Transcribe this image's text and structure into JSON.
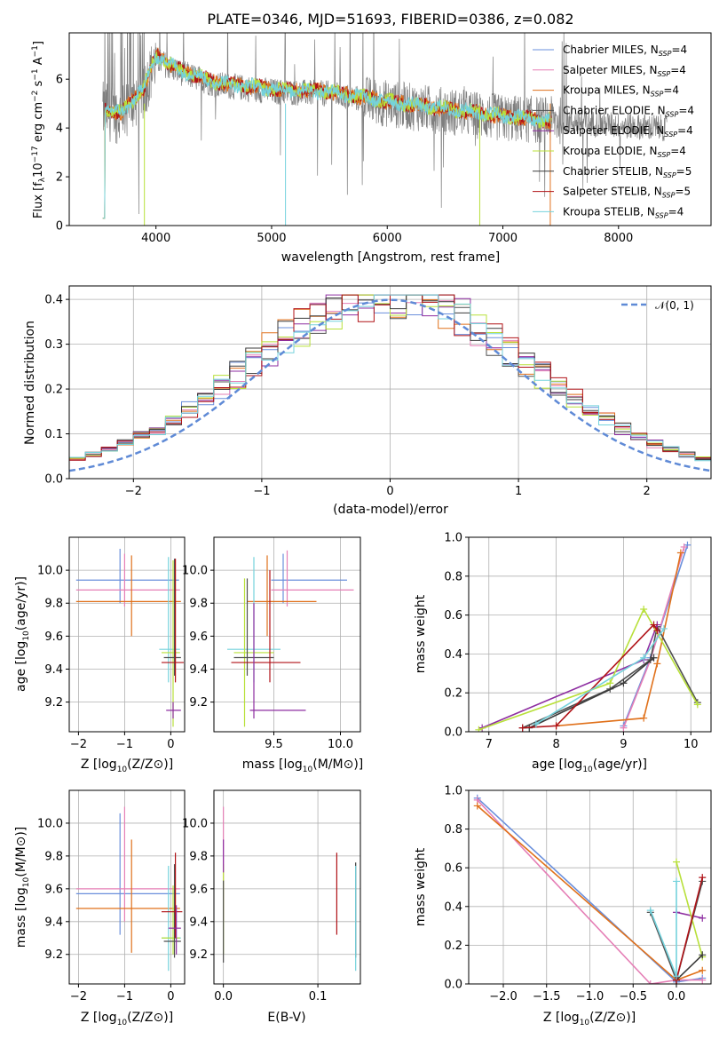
{
  "colors": {
    "chabrier_miles": "#6a8fdc",
    "salpeter_miles": "#e57fb6",
    "kroupa_miles": "#e0711b",
    "chabrier_elodie": "#4f4f4f",
    "salpeter_elodie": "#8e2ea1",
    "kroupa_elodie": "#b8e03a",
    "chabrier_stelib": "#3a3a3a",
    "salpeter_stelib": "#b01217",
    "kroupa_stelib": "#74d2dc",
    "data_grey": "#7f7f7f",
    "normal": "#5f8ad6",
    "grid": "#b0b0b0"
  },
  "chart_data": [
    {
      "type": "line",
      "title": "PLATE=0346, MJD=51693, FIBERID=0386, z=0.082",
      "xlabel": "wavelength [Angstrom, rest frame]",
      "ylabel": "Flux [fλ 10⁻¹⁷ erg cm⁻² s⁻¹ A⁻¹]",
      "xlim": [
        3250,
        8800
      ],
      "ylim": [
        0,
        7.9
      ],
      "xticks": [
        4000,
        5000,
        6000,
        7000,
        8000
      ],
      "yticks": [
        0,
        2,
        4,
        6
      ],
      "legend_position": "right",
      "legend": [
        {
          "pre": "Chabrier MILES, N",
          "sub": "SSP",
          "post": "=4",
          "color": "#6a8fdc"
        },
        {
          "pre": "Salpeter MILES, N",
          "sub": "SSP",
          "post": "=4",
          "color": "#e57fb6"
        },
        {
          "pre": "Kroupa MILES, N",
          "sub": "SSP",
          "post": "=4",
          "color": "#e0711b"
        },
        {
          "pre": "Chabrier ELODIE, N",
          "sub": "SSP",
          "post": "=4",
          "color": "#4f4f4f"
        },
        {
          "pre": "Salpeter ELODIE, N",
          "sub": "SSP",
          "post": "=4",
          "color": "#8e2ea1"
        },
        {
          "pre": "Kroupa ELODIE, N",
          "sub": "SSP",
          "post": "=4",
          "color": "#b8e03a"
        },
        {
          "pre": "Chabrier STELIB, N",
          "sub": "SSP",
          "post": "=5",
          "color": "#3a3a3a"
        },
        {
          "pre": "Salpeter STELIB, N",
          "sub": "SSP",
          "post": "=5",
          "color": "#b01217"
        },
        {
          "pre": "Kroupa STELIB, N",
          "sub": "SSP",
          "post": "=4",
          "color": "#74d2dc"
        }
      ],
      "model_continuum": {
        "x": [
          3550,
          3700,
          3900,
          4000,
          4200,
          4500,
          5000,
          5500,
          6000,
          6500,
          7000,
          7400
        ],
        "y": [
          4.8,
          4.6,
          5.7,
          7.0,
          6.4,
          5.9,
          5.6,
          5.5,
          5.1,
          4.8,
          4.5,
          4.3
        ]
      },
      "data_continuum": {
        "x": [
          3550,
          3700,
          3900,
          4000,
          4200,
          4500,
          5000,
          5500,
          6000,
          6500,
          7000,
          7500,
          8000,
          8400
        ],
        "y": [
          4.7,
          4.5,
          5.6,
          6.8,
          6.3,
          5.8,
          5.5,
          5.4,
          5.0,
          4.7,
          4.4,
          4.3,
          4.1,
          4.0
        ]
      }
    },
    {
      "type": "bar",
      "xlabel": "(data-model)/error",
      "ylabel": "Normed distribution",
      "xlim": [
        -2.5,
        2.5
      ],
      "ylim": [
        0,
        0.43
      ],
      "xticks": [
        -2,
        -1,
        0,
        1,
        2
      ],
      "yticks": [
        0.0,
        0.1,
        0.2,
        0.3,
        0.4
      ],
      "legend": "𝒩(0, 1)",
      "legend_position": "top-right",
      "bins": [
        -2.5,
        2.5,
        40
      ]
    },
    {
      "type": "scatter",
      "xlabel_pre": "Z [log",
      "xlabel_post": "(Z/Z⊙)]",
      "ylabel_pre": "age  [log",
      "ylabel_post": "(age/yr)]",
      "xlim": [
        -2.2,
        0.3
      ],
      "ylim": [
        9.02,
        10.2
      ],
      "xticks": [
        -2,
        -1,
        0
      ],
      "yticks": [
        9.2,
        9.4,
        9.6,
        9.8,
        10.0
      ],
      "points": [
        {
          "s": "chabrier_miles",
          "x": -1.1,
          "y": 9.94,
          "xe": [
            -2.05,
            0.18
          ],
          "ye": [
            9.8,
            10.13
          ]
        },
        {
          "s": "salpeter_miles",
          "x": -1.0,
          "y": 9.88,
          "xe": [
            -2.05,
            0.2
          ],
          "ye": [
            9.78,
            10.1
          ]
        },
        {
          "s": "kroupa_miles",
          "x": -0.85,
          "y": 9.81,
          "xe": [
            -2.05,
            0.22
          ],
          "ye": [
            9.6,
            10.09
          ]
        },
        {
          "s": "kroupa_stelib",
          "x": -0.05,
          "y": 9.52,
          "xe": [
            -0.25,
            0.2
          ],
          "ye": [
            9.32,
            10.08
          ]
        },
        {
          "s": "kroupa_elodie",
          "x": 0.05,
          "y": 9.5,
          "xe": [
            -0.2,
            0.2
          ],
          "ye": [
            9.05,
            10.06
          ]
        },
        {
          "s": "chabrier_elodie",
          "x": 0.08,
          "y": 9.47,
          "xe": [
            -0.15,
            0.22
          ],
          "ye": [
            9.36,
            10.07
          ]
        },
        {
          "s": "salpeter_stelib",
          "x": 0.1,
          "y": 9.44,
          "xe": [
            -0.2,
            0.28
          ],
          "ye": [
            9.32,
            10.07
          ]
        },
        {
          "s": "salpeter_elodie",
          "x": 0.05,
          "y": 9.15,
          "xe": [
            -0.1,
            0.22
          ],
          "ye": [
            9.1,
            9.2
          ]
        }
      ]
    },
    {
      "type": "scatter",
      "xlabel_pre": "mass [log",
      "xlabel_post": "(M/M⊙)]",
      "xlim": [
        9.05,
        10.15
      ],
      "ylim": [
        9.02,
        10.2
      ],
      "xticks": [
        9.5,
        10.0
      ],
      "yticks": [
        9.2,
        9.4,
        9.6,
        9.8,
        10.0
      ],
      "points": [
        {
          "s": "chabrier_miles",
          "x": 9.57,
          "y": 9.94,
          "xe": [
            9.48,
            10.05
          ],
          "ye": [
            9.8,
            10.1
          ]
        },
        {
          "s": "salpeter_miles",
          "x": 9.6,
          "y": 9.88,
          "xe": [
            9.48,
            10.1
          ],
          "ye": [
            9.78,
            10.12
          ]
        },
        {
          "s": "kroupa_miles",
          "x": 9.45,
          "y": 9.81,
          "xe": [
            9.3,
            9.82
          ],
          "ye": [
            9.6,
            10.09
          ]
        },
        {
          "s": "kroupa_stelib",
          "x": 9.35,
          "y": 9.52,
          "xe": [
            9.15,
            9.55
          ],
          "ye": [
            9.32,
            10.08
          ]
        },
        {
          "s": "kroupa_elodie",
          "x": 9.28,
          "y": 9.5,
          "xe": [
            9.2,
            9.5
          ],
          "ye": [
            9.05,
            9.95
          ]
        },
        {
          "s": "chabrier_elodie",
          "x": 9.3,
          "y": 9.47,
          "xe": [
            9.2,
            9.5
          ],
          "ye": [
            9.36,
            9.95
          ]
        },
        {
          "s": "salpeter_stelib",
          "x": 9.47,
          "y": 9.44,
          "xe": [
            9.18,
            9.7
          ],
          "ye": [
            9.32,
            10.0
          ]
        },
        {
          "s": "salpeter_elodie",
          "x": 9.35,
          "y": 9.15,
          "xe": [
            9.32,
            9.74
          ],
          "ye": [
            9.1,
            9.8
          ]
        }
      ]
    },
    {
      "type": "line",
      "xlabel_pre": "age  [log",
      "xlabel_post": "(age/yr)]",
      "ylabel": "mass weight",
      "xlim": [
        6.7,
        10.3
      ],
      "ylim": [
        0,
        1
      ],
      "xticks": [
        7,
        8,
        9,
        10
      ],
      "yticks": [
        0.0,
        0.2,
        0.4,
        0.6,
        0.8,
        1.0
      ],
      "series": [
        {
          "s": "chabrier_miles",
          "x": [
            9.0,
            9.4,
            9.95
          ],
          "y": [
            0.03,
            0.38,
            0.96
          ]
        },
        {
          "s": "salpeter_miles",
          "x": [
            9.0,
            9.4,
            9.9
          ],
          "y": [
            0.02,
            0.37,
            0.95
          ]
        },
        {
          "s": "kroupa_miles",
          "x": [
            8.0,
            9.3,
            9.5,
            9.85
          ],
          "y": [
            0.03,
            0.07,
            0.35,
            0.92
          ]
        },
        {
          "s": "chabrier_elodie",
          "x": [
            7.5,
            8.8,
            9.4,
            9.5,
            10.1
          ],
          "y": [
            0.02,
            0.22,
            0.37,
            0.54,
            0.15
          ]
        },
        {
          "s": "salpeter_elodie",
          "x": [
            6.9,
            9.3,
            9.5
          ],
          "y": [
            0.02,
            0.37,
            0.55
          ]
        },
        {
          "s": "kroupa_elodie",
          "x": [
            6.85,
            8.8,
            9.3,
            10.1
          ],
          "y": [
            0.01,
            0.25,
            0.63,
            0.14
          ]
        },
        {
          "s": "chabrier_stelib",
          "x": [
            7.6,
            9.0,
            9.45
          ],
          "y": [
            0.02,
            0.25,
            0.38
          ]
        },
        {
          "s": "salpeter_stelib",
          "x": [
            7.5,
            8.0,
            9.45,
            9.5
          ],
          "y": [
            0.02,
            0.03,
            0.55,
            0.52
          ]
        },
        {
          "s": "kroupa_stelib",
          "x": [
            7.7,
            9.3,
            9.6
          ],
          "y": [
            0.04,
            0.38,
            0.53
          ]
        }
      ]
    },
    {
      "type": "scatter",
      "xlabel_pre": "Z [log",
      "xlabel_post": "(Z/Z⊙)]",
      "ylabel_pre": "mass [log",
      "ylabel_post": "(M/M⊙)]",
      "xlim": [
        -2.2,
        0.3
      ],
      "ylim": [
        9.02,
        10.2
      ],
      "xticks": [
        -2,
        -1,
        0
      ],
      "yticks": [
        9.2,
        9.4,
        9.6,
        9.8,
        10.0
      ],
      "points": [
        {
          "s": "chabrier_miles",
          "x": -1.1,
          "y": 9.57,
          "xe": [
            -2.05,
            0.2
          ],
          "ye": [
            9.32,
            10.06
          ]
        },
        {
          "s": "salpeter_miles",
          "x": -1.0,
          "y": 9.6,
          "xe": [
            -2.05,
            0.2
          ],
          "ye": [
            9.4,
            10.1
          ]
        },
        {
          "s": "kroupa_miles",
          "x": -0.85,
          "y": 9.48,
          "xe": [
            -2.05,
            0.2
          ],
          "ye": [
            9.21,
            9.9
          ]
        },
        {
          "s": "kroupa_stelib",
          "x": -0.05,
          "y": 9.3,
          "xe": [
            -0.2,
            0.22
          ],
          "ye": [
            9.1,
            9.74
          ]
        },
        {
          "s": "kroupa_elodie",
          "x": 0.05,
          "y": 9.3,
          "xe": [
            -0.2,
            0.2
          ],
          "ye": [
            9.2,
            9.62
          ]
        },
        {
          "s": "chabrier_elodie",
          "x": 0.08,
          "y": 9.28,
          "xe": [
            -0.15,
            0.22
          ],
          "ye": [
            9.18,
            9.75
          ]
        },
        {
          "s": "salpeter_stelib",
          "x": 0.1,
          "y": 9.46,
          "xe": [
            -0.2,
            0.25
          ],
          "ye": [
            9.3,
            9.82
          ]
        },
        {
          "s": "salpeter_elodie",
          "x": 0.12,
          "y": 9.36,
          "xe": [
            -0.05,
            0.22
          ],
          "ye": [
            9.2,
            9.5
          ]
        }
      ]
    },
    {
      "type": "scatter",
      "xlabel": "E(B-V)",
      "xlim": [
        -0.01,
        0.145
      ],
      "ylim": [
        9.02,
        10.2
      ],
      "xticks": [
        0.0,
        0.1
      ],
      "yticks": [
        9.2,
        9.4,
        9.6,
        9.8,
        10.0
      ],
      "points": [
        {
          "s": "salpeter_miles",
          "x": 0.0,
          "y": 9.6,
          "ye": [
            9.4,
            10.1
          ]
        },
        {
          "s": "kroupa_elodie",
          "x": 0.0,
          "y": 9.5,
          "ye": [
            9.2,
            9.75
          ]
        },
        {
          "s": "salpeter_elodie",
          "x": 0.0,
          "y": 9.8,
          "ye": [
            9.7,
            9.9
          ]
        },
        {
          "s": "chabrier_elodie",
          "x": 0.0,
          "y": 9.4,
          "ye": [
            9.15,
            9.65
          ]
        },
        {
          "s": "salpeter_stelib",
          "x": 0.12,
          "y": 9.55,
          "ye": [
            9.32,
            9.82
          ]
        },
        {
          "s": "chabrier_stelib",
          "x": 0.14,
          "y": 9.5,
          "ye": [
            9.18,
            9.76
          ]
        },
        {
          "s": "kroupa_stelib",
          "x": 0.14,
          "y": 9.4,
          "ye": [
            9.1,
            9.74
          ]
        }
      ]
    },
    {
      "type": "line",
      "xlabel_pre": "Z [log",
      "xlabel_post": "(Z/Z⊙)]",
      "ylabel": "mass weight",
      "xlim": [
        -2.4,
        0.4
      ],
      "ylim": [
        0,
        1
      ],
      "xticks": [
        -2.0,
        -1.5,
        -1.0,
        -0.5,
        0.0
      ],
      "xtick_labels": [
        "−2.0",
        "−1.5",
        "−1.0",
        "−0.5",
        "0.0"
      ],
      "yticks": [
        0.0,
        0.2,
        0.4,
        0.6,
        0.8,
        1.0
      ],
      "series": [
        {
          "s": "chabrier_miles",
          "x": [
            -2.3,
            0.0,
            0.3
          ],
          "y": [
            0.96,
            0.01,
            0.03
          ]
        },
        {
          "s": "salpeter_miles",
          "x": [
            -2.3,
            -0.3,
            0.0,
            0.3
          ],
          "y": [
            0.95,
            0.0,
            0.02,
            0.02
          ]
        },
        {
          "s": "kroupa_miles",
          "x": [
            -2.3,
            0.0,
            0.3
          ],
          "y": [
            0.92,
            0.02,
            0.07
          ]
        },
        {
          "s": "chabrier_elodie",
          "x": [
            -0.3,
            0.0,
            0.3
          ],
          "y": [
            0.37,
            0.02,
            0.53
          ]
        },
        {
          "s": "salpeter_elodie",
          "x": [
            0.0,
            0.3
          ],
          "y": [
            0.37,
            0.34
          ]
        },
        {
          "s": "kroupa_elodie",
          "x": [
            0.0,
            0.3
          ],
          "y": [
            0.63,
            0.14
          ]
        },
        {
          "s": "chabrier_stelib",
          "x": [
            0.0,
            0.3
          ],
          "y": [
            0.02,
            0.15
          ]
        },
        {
          "s": "salpeter_stelib",
          "x": [
            0.0,
            0.3
          ],
          "y": [
            0.02,
            0.55
          ]
        },
        {
          "s": "kroupa_stelib",
          "x": [
            -0.3,
            0.0,
            0.0
          ],
          "y": [
            0.38,
            0.04,
            0.53
          ]
        }
      ]
    }
  ]
}
